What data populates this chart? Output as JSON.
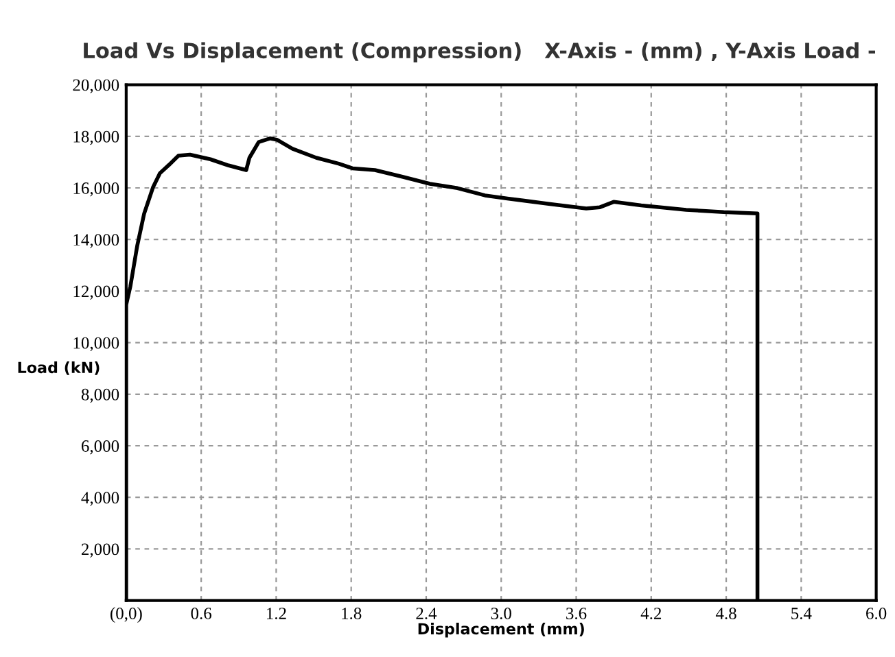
{
  "chart_data": {
    "type": "line",
    "title": "Load Vs Displacement (Compression)   X-Axis - (mm) , Y-Axis Load -",
    "xlabel": "Displacement (mm)",
    "ylabel": "Load (kN)",
    "series": [
      {
        "color": "#000000",
        "x": [
          0,
          0,
          0.033,
          0.088,
          0.143,
          0.216,
          0.27,
          0.344,
          0.418,
          0.51,
          0.674,
          0.82,
          0.96,
          0.986,
          1.06,
          1.15,
          1.205,
          1.33,
          1.52,
          1.7,
          1.81,
          1.99,
          2.21,
          2.43,
          2.65,
          2.87,
          3.05,
          3.38,
          3.68,
          3.79,
          3.9,
          4.12,
          4.48,
          4.78,
          5.05,
          5.05
        ],
        "values": [
          0,
          11470,
          12170,
          13750,
          14990,
          16040,
          16570,
          16900,
          17250,
          17290,
          17110,
          16870,
          16690,
          17170,
          17780,
          17920,
          17870,
          17520,
          17170,
          16940,
          16760,
          16690,
          16430,
          16160,
          15990,
          15710,
          15590,
          15380,
          15200,
          15250,
          15460,
          15320,
          15150,
          15060,
          15010,
          0
        ]
      }
    ],
    "xlim": [
      0,
      6.0
    ],
    "ylim": [
      0,
      20000
    ],
    "xticks": [
      {
        "value": 0,
        "label": "(0,0)"
      },
      0.6,
      1.2,
      1.8,
      2.4,
      {
        "value": 3.0,
        "label": "3.0"
      },
      3.6,
      4.2,
      4.8,
      5.4,
      {
        "value": 6.0,
        "label": "6.0"
      }
    ],
    "yticks": [
      {
        "value": 2000,
        "label": "2,000"
      },
      {
        "value": 4000,
        "label": "4,000"
      },
      {
        "value": 6000,
        "label": "6,000"
      },
      {
        "value": 8000,
        "label": "8,000"
      },
      {
        "value": 10000,
        "label": "10,000"
      },
      {
        "value": 12000,
        "label": "12,000"
      },
      {
        "value": 14000,
        "label": "14,000"
      },
      {
        "value": 16000,
        "label": "16,000"
      },
      {
        "value": 18000,
        "label": "18,000"
      },
      {
        "value": 20000,
        "label": "20,000"
      }
    ],
    "grid": true,
    "marker": "none",
    "line_style": "solid"
  }
}
